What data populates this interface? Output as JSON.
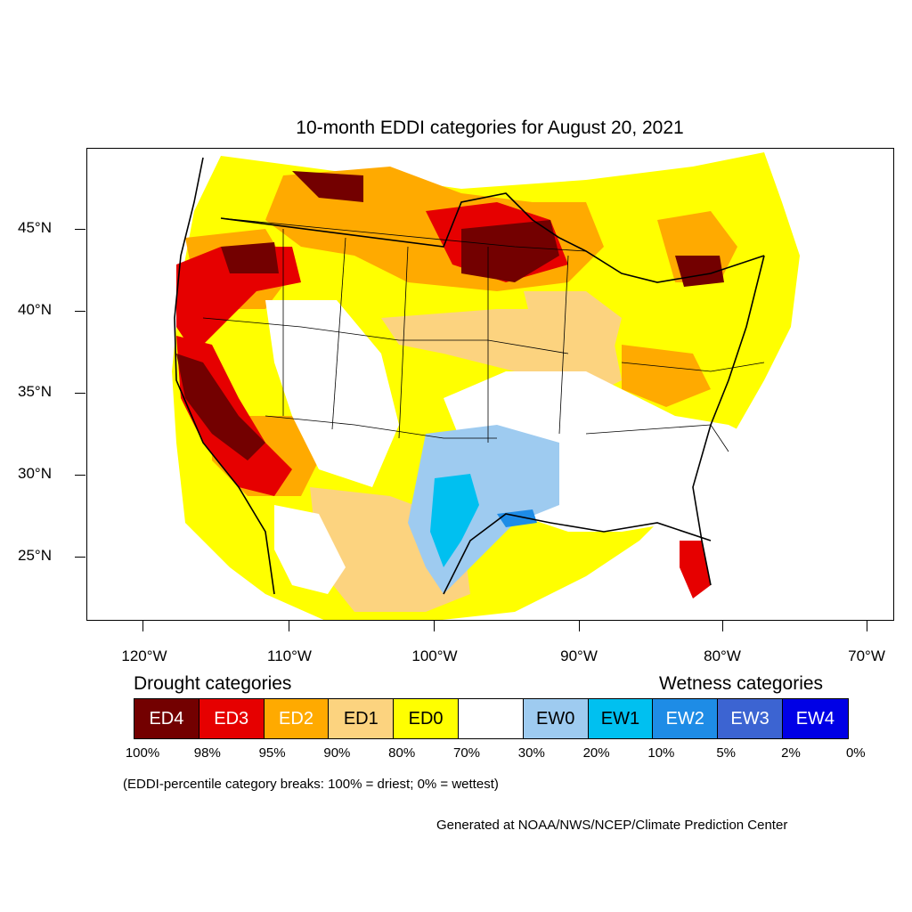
{
  "title": "10-month EDDI categories for August 20, 2021",
  "map": {
    "lat_labels": [
      "45°N",
      "40°N",
      "35°N",
      "30°N",
      "25°N"
    ],
    "lon_labels": [
      "120°W",
      "110°W",
      "100°W",
      "90°W",
      "80°W",
      "70°W"
    ]
  },
  "legend": {
    "drought_heading": "Drought categories",
    "wetness_heading": "Wetness categories",
    "categories": [
      {
        "label": "ED4",
        "color": "#730000",
        "text_color": "#ffffff"
      },
      {
        "label": "ED3",
        "color": "#e60000",
        "text_color": "#ffffff"
      },
      {
        "label": "ED2",
        "color": "#ffaa00",
        "text_color": "#ffffff"
      },
      {
        "label": "ED1",
        "color": "#fcd37f",
        "text_color": "#000000"
      },
      {
        "label": "ED0",
        "color": "#ffff00",
        "text_color": "#000000"
      },
      {
        "label": "",
        "color": "#ffffff",
        "text_color": "#000000"
      },
      {
        "label": "EW0",
        "color": "#9ecbf0",
        "text_color": "#000000"
      },
      {
        "label": "EW1",
        "color": "#00c0f0",
        "text_color": "#000000"
      },
      {
        "label": "EW2",
        "color": "#1e8ce6",
        "text_color": "#ffffff"
      },
      {
        "label": "EW3",
        "color": "#3c64d2",
        "text_color": "#ffffff"
      },
      {
        "label": "EW4",
        "color": "#0000e6",
        "text_color": "#ffffff"
      }
    ],
    "percent_breaks": [
      "100%",
      "98%",
      "95%",
      "90%",
      "80%",
      "70%",
      "30%",
      "20%",
      "10%",
      "5%",
      "2%",
      "0%"
    ]
  },
  "note": "(EDDI-percentile category breaks: 100% = driest; 0% = wettest)",
  "credit": "Generated at NOAA/NWS/NCEP/Climate Prediction Center"
}
